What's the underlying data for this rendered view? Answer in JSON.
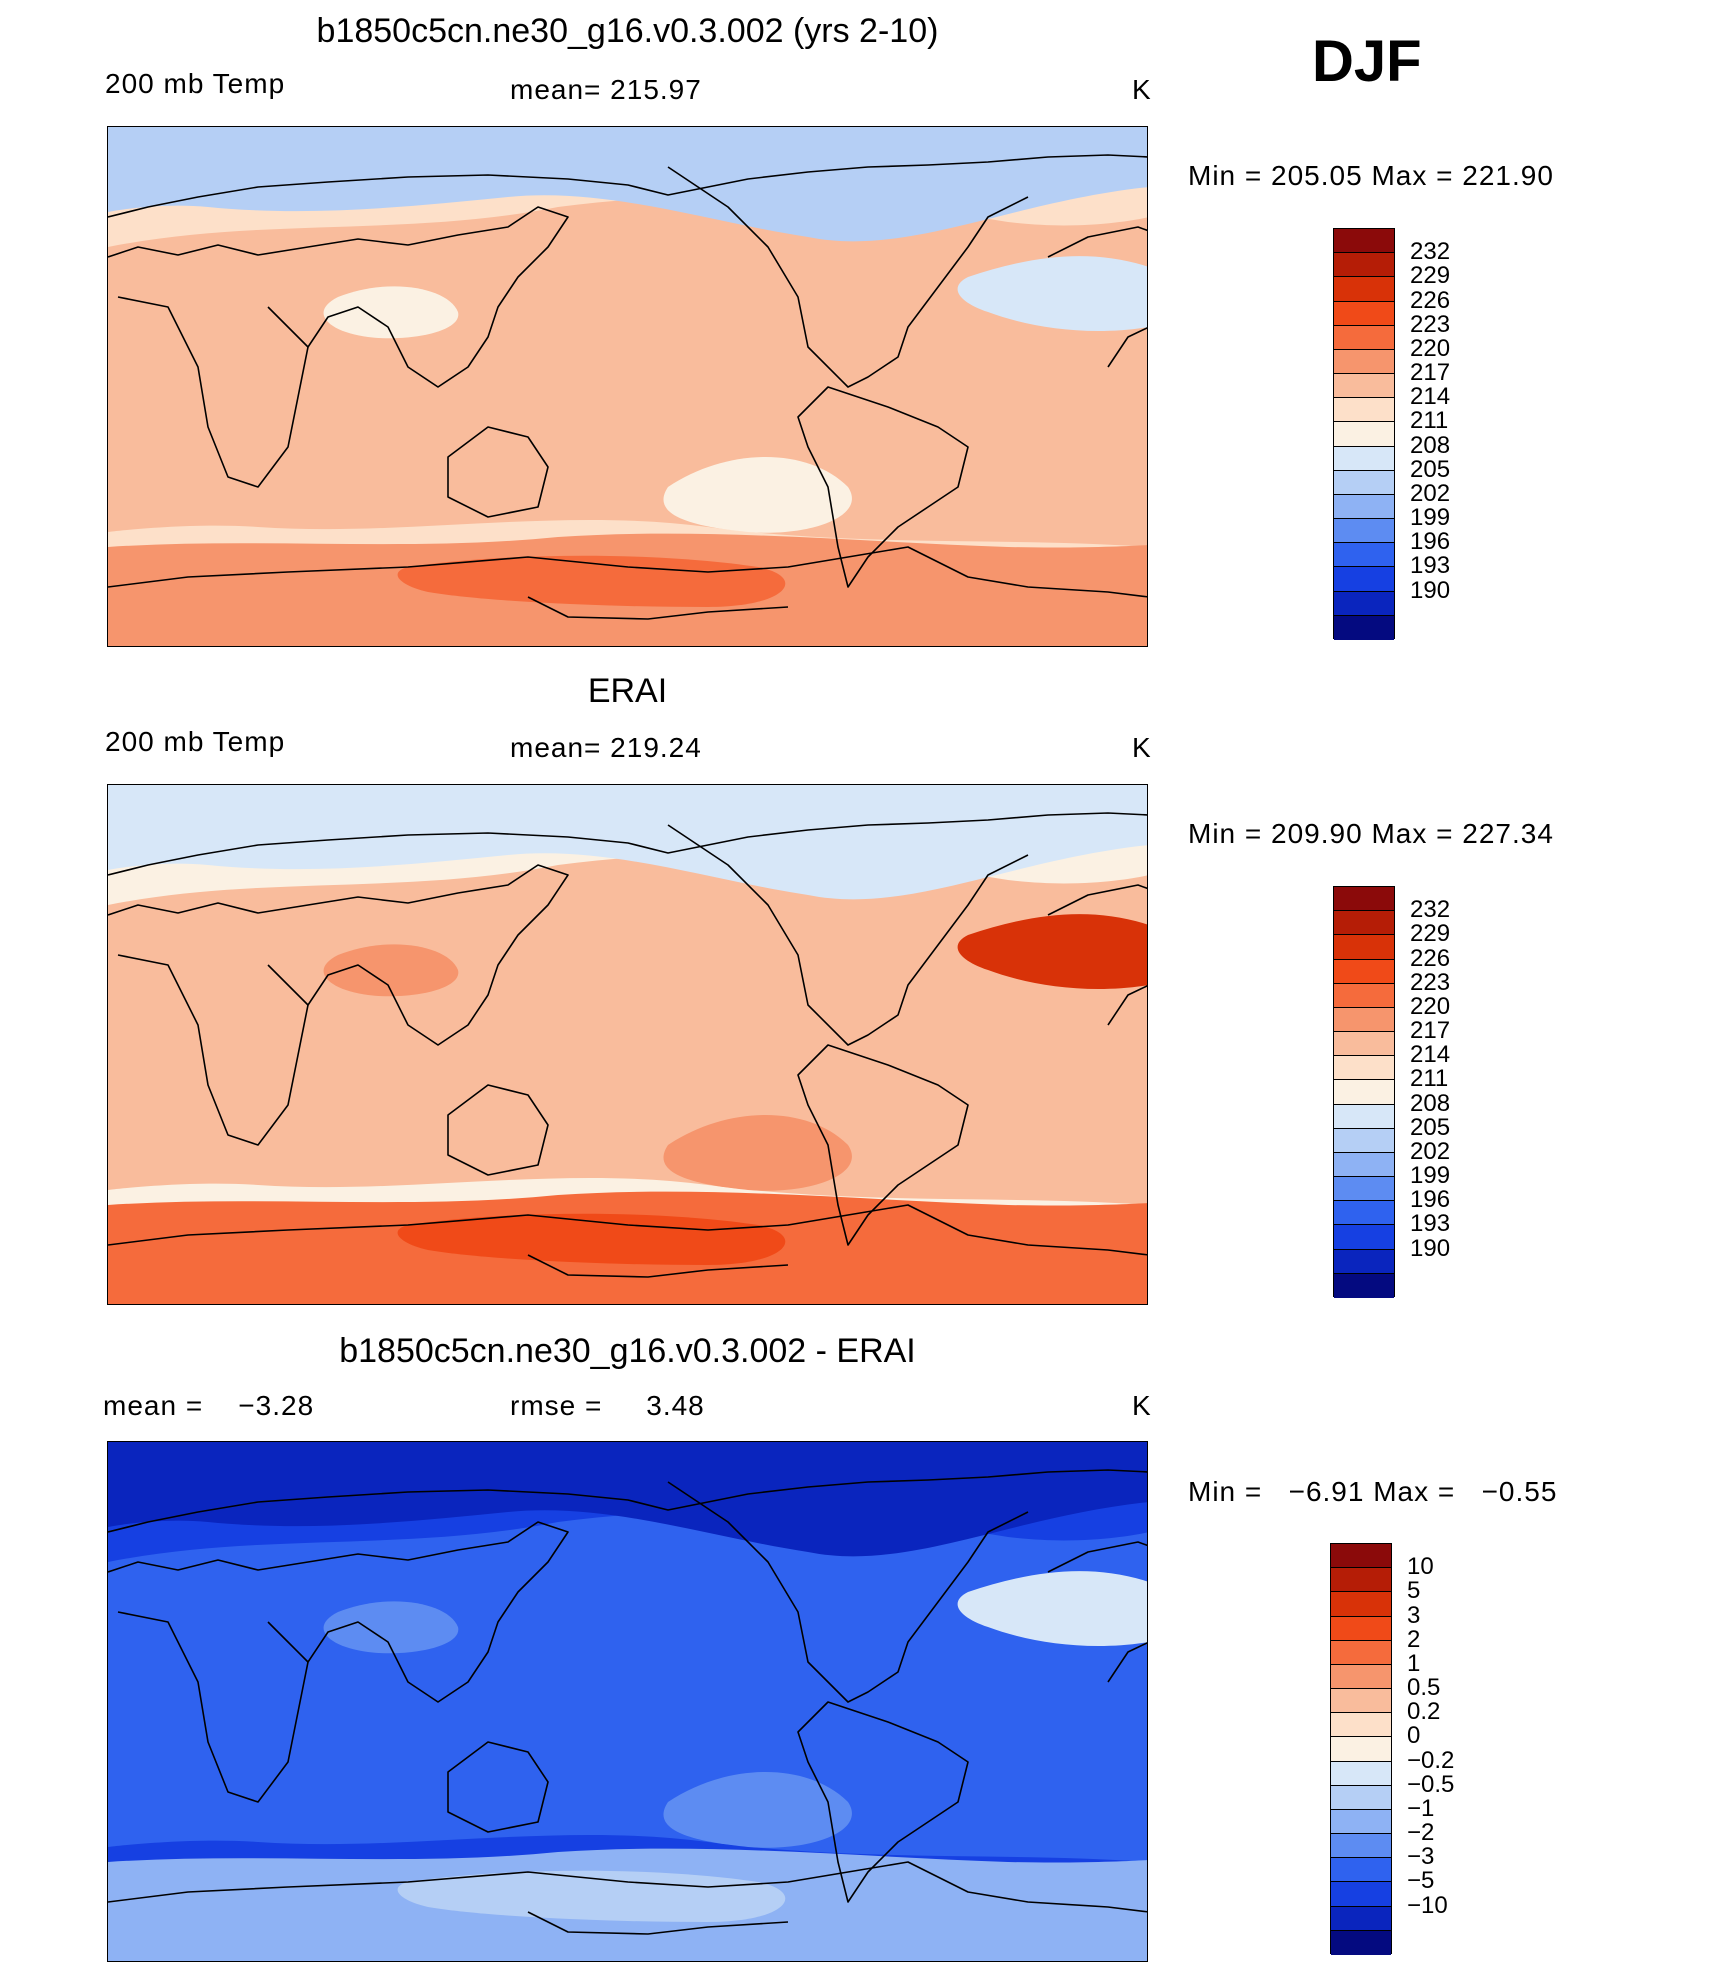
{
  "season": "DJF",
  "panels": [
    {
      "title": "b1850c5cn.ne30_g16.v0.3.002 (yrs 2-10)",
      "left_label": "200 mb Temp",
      "center_label": "mean= 215.97",
      "unit": "K",
      "minmax": "Min = 205.05 Max = 221.90",
      "colorbar": {
        "labels": [
          "232",
          "229",
          "226",
          "223",
          "220",
          "217",
          "214",
          "211",
          "208",
          "205",
          "202",
          "199",
          "196",
          "193",
          "190"
        ],
        "colors": [
          "#8b0a0a",
          "#b51d06",
          "#d83208",
          "#f04a18",
          "#f56b3c",
          "#f6956d",
          "#f9bc9c",
          "#fde0c9",
          "#fbf1e3",
          "#d7e7f8",
          "#b5cff5",
          "#8eb2f4",
          "#5d8cf2",
          "#2f62ef",
          "#1640e2",
          "#0a25be",
          "#040a80"
        ]
      },
      "fills": [
        "#fde0c9",
        "#f9bc9c",
        "#b5cff5",
        "#fbf1e3",
        "#f6956d",
        "#f56b3c",
        "#d7e7f8"
      ]
    },
    {
      "title": "ERAI",
      "left_label": "200 mb Temp",
      "center_label": "mean= 219.24",
      "unit": "K",
      "minmax": "Min = 209.90 Max = 227.34",
      "colorbar": {
        "labels": [
          "232",
          "229",
          "226",
          "223",
          "220",
          "217",
          "214",
          "211",
          "208",
          "205",
          "202",
          "199",
          "196",
          "193",
          "190"
        ],
        "colors": [
          "#8b0a0a",
          "#b51d06",
          "#d83208",
          "#f04a18",
          "#f56b3c",
          "#f6956d",
          "#f9bc9c",
          "#fde0c9",
          "#fbf1e3",
          "#d7e7f8",
          "#b5cff5",
          "#8eb2f4",
          "#5d8cf2",
          "#2f62ef",
          "#1640e2",
          "#0a25be",
          "#040a80"
        ]
      },
      "fills": [
        "#fbf1e3",
        "#f9bc9c",
        "#d7e7f8",
        "#f6956d",
        "#f56b3c",
        "#f04a18",
        "#d83208"
      ]
    },
    {
      "title": "b1850c5cn.ne30_g16.v0.3.002 - ERAI",
      "left_label": "mean =    −3.28",
      "center_label": "rmse =     3.48",
      "unit": "K",
      "minmax": "Min =   −6.91 Max =   −0.55",
      "colorbar": {
        "labels": [
          "10",
          "5",
          "3",
          "2",
          "1",
          "0.5",
          "0.2",
          "0",
          "−0.2",
          "−0.5",
          "−1",
          "−2",
          "−3",
          "−5",
          "−10"
        ],
        "colors": [
          "#8b0a0a",
          "#b51d06",
          "#d83208",
          "#f04a18",
          "#f56b3c",
          "#f6956d",
          "#f9bc9c",
          "#fde0c9",
          "#fbf1e3",
          "#d7e7f8",
          "#b5cff5",
          "#8eb2f4",
          "#5d8cf2",
          "#2f62ef",
          "#1640e2",
          "#0a25be",
          "#040a80"
        ]
      },
      "fills": [
        "#1640e2",
        "#2f62ef",
        "#0a25be",
        "#5d8cf2",
        "#8eb2f4",
        "#b5cff5",
        "#d7e7f8"
      ]
    }
  ]
}
